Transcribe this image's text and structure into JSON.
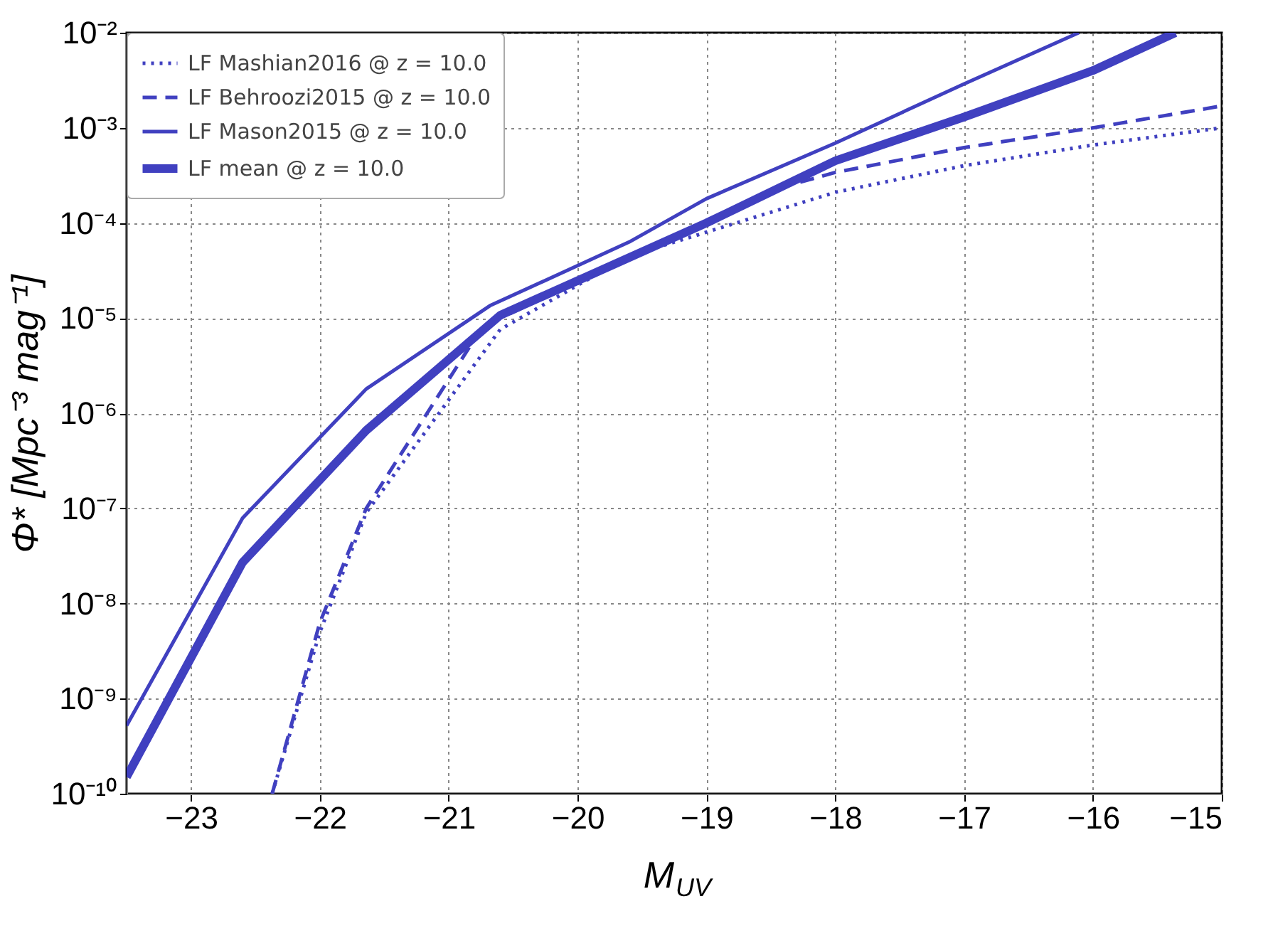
{
  "chart_data": {
    "type": "line",
    "xlabel": "M$_{UV}$",
    "ylabel": "Φ* [Mpc⁻³ mag⁻¹]",
    "log": "y",
    "grid": true,
    "legend": "top left",
    "xlim": [
      -23.5,
      -15
    ],
    "xticks": [
      -23,
      -22,
      -21,
      -20,
      -19,
      -18,
      -17,
      -16,
      -15
    ],
    "ylim": [
      1e-10,
      0.01
    ],
    "yticks": [
      {
        "value": 1e-10,
        "label": "10⁻¹⁰"
      },
      {
        "value": 1e-09,
        "label": "10⁻⁹"
      },
      {
        "value": 1e-08,
        "label": "10⁻⁸"
      },
      {
        "value": 1e-07,
        "label": "10⁻⁷"
      },
      {
        "value": 1e-06,
        "label": "10⁻⁶"
      },
      {
        "value": 1e-05,
        "label": "10⁻⁵"
      },
      {
        "value": 0.0001,
        "label": "10⁻⁴"
      },
      {
        "value": 0.001,
        "label": "10⁻³"
      },
      {
        "value": 0.01,
        "label": "10⁻²"
      }
    ],
    "series": [
      {
        "name": "LF Mashian2016 @ z = 10.0",
        "color": "#4040c0",
        "line_style": "dotted",
        "x": [
          -22.37,
          -22.0,
          -21.64,
          -20.6,
          -19.6,
          -19,
          -18,
          -17,
          -16,
          -15
        ],
        "values": [
          1e-10,
          5e-09,
          9e-08,
          7.6e-06,
          4.5e-05,
          8e-05,
          0.00021,
          0.0004,
          0.00066,
          0.001
        ]
      },
      {
        "name": "LF Behroozi2015 @ z = 10.0",
        "color": "#4040c0",
        "line_style": "dashed",
        "x": [
          -22.37,
          -22.0,
          -21.64,
          -20.8,
          -20.6,
          -19,
          -18.5,
          -18,
          -17,
          -16,
          -15
        ],
        "values": [
          1e-10,
          6.3e-09,
          1e-07,
          6e-06,
          1e-05,
          0.0001,
          0.00022,
          0.00034,
          0.00062,
          0.001,
          0.0017
        ]
      },
      {
        "name": "LF Mason2015 @ z = 10.0",
        "color": "#4040c0",
        "line_style": "solid",
        "x": [
          -23.5,
          -22.6,
          -21.64,
          -20.68,
          -19.6,
          -19,
          -18,
          -17,
          -16.11
        ],
        "values": [
          5.2e-10,
          7.9e-08,
          1.8e-06,
          1.35e-05,
          6.3e-05,
          0.00018,
          0.00069,
          0.0029,
          0.01
        ]
      },
      {
        "name": "LF mean @ z = 10.0",
        "color": "#4040c0",
        "line_style": "solid",
        "x": [
          -23.5,
          -22.6,
          -21.64,
          -20.6,
          -19,
          -18,
          -17,
          -16,
          -15.36
        ],
        "values": [
          1.5e-10,
          2.7e-08,
          6.6e-07,
          1.07e-05,
          0.0001,
          0.00045,
          0.0013,
          0.004,
          0.01
        ]
      }
    ]
  }
}
